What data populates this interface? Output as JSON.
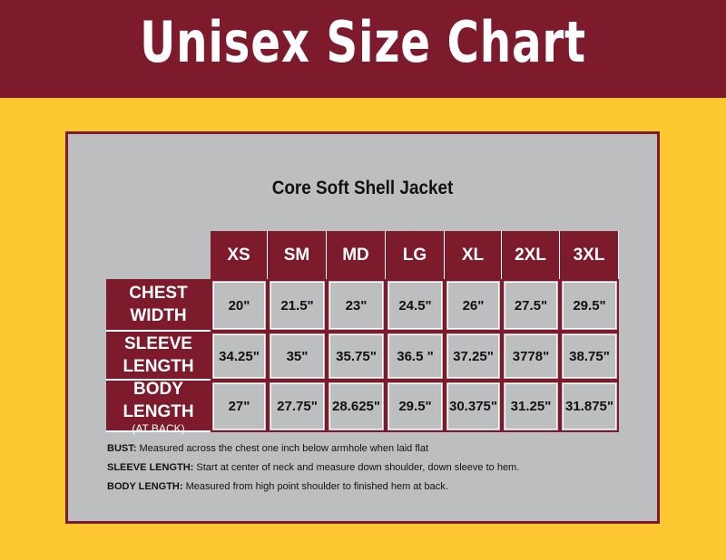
{
  "header": {
    "title": "Unisex Size Chart"
  },
  "panel": {
    "subtitle": "Core Soft Shell Jacket"
  },
  "table": {
    "columns": [
      "XS",
      "SM",
      "MD",
      "LG",
      "XL",
      "2XL",
      "3XL"
    ],
    "rows": [
      {
        "label": [
          "CHEST",
          "WIDTH"
        ],
        "values": [
          "20\"",
          "21.5\"",
          "23\"",
          "24.5\"",
          "26\"",
          "27.5\"",
          "29.5\""
        ]
      },
      {
        "label": [
          "SLEEVE",
          "LENGTH"
        ],
        "values": [
          "34.25\"",
          "35\"",
          "35.75\"",
          "36.5 \"",
          "37.25\"",
          "3778\"",
          "38.75\""
        ]
      },
      {
        "label": [
          "BODY",
          "LENGTH"
        ],
        "note": "(AT BACK)",
        "values": [
          "27\"",
          "27.75\"",
          "28.625\"",
          "29.5\"",
          "30.375\"",
          "31.25\"",
          "31.875\""
        ]
      }
    ]
  },
  "notes": [
    {
      "term": "BUST:",
      "text": "Measured across the chest one inch below armhole when laid flat"
    },
    {
      "term": "SLEEVE LENGTH:",
      "text": "Start at center of neck and measure down shoulder, down sleeve to hem."
    },
    {
      "term": "BODY LENGTH:",
      "text": "Measured from high point shoulder to finished hem at back."
    }
  ]
}
